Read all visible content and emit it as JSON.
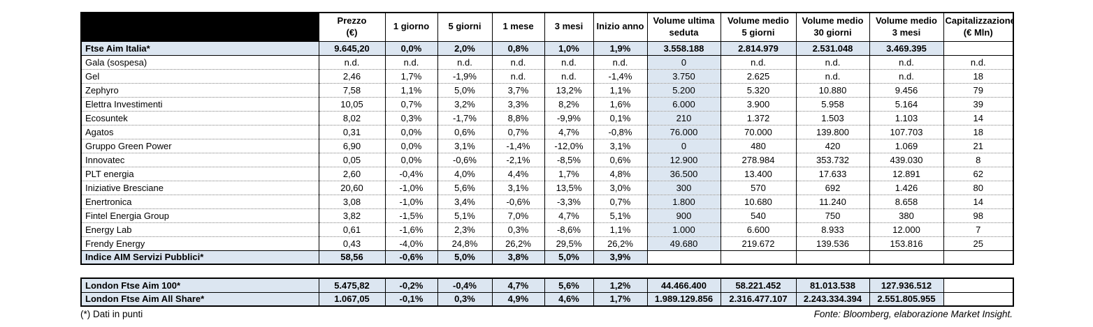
{
  "footnote": "(*) Dati in punti",
  "source": "Fonte: Bloomberg, elaborazione Market Insight.",
  "colors": {
    "row_highlight": "#DCE6F1",
    "volume_column_shade": "#DCE6F1",
    "header_corner": "#000000",
    "border": "#000000"
  },
  "chart_data": {
    "type": "table",
    "title": "",
    "grid": "on",
    "columns": [
      {
        "key": "name",
        "lines": [
          ""
        ]
      },
      {
        "key": "prezzo",
        "lines": [
          "Prezzo",
          "(€)"
        ]
      },
      {
        "key": "1-giorno",
        "lines": [
          "1 giorno"
        ]
      },
      {
        "key": "5-giorni",
        "lines": [
          "5 giorni"
        ]
      },
      {
        "key": "1-mese",
        "lines": [
          "1 mese"
        ]
      },
      {
        "key": "3-mesi",
        "lines": [
          "3 mesi"
        ]
      },
      {
        "key": "inizio-anno",
        "lines": [
          "Inizio anno"
        ]
      },
      {
        "key": "volume-ultima-seduta",
        "lines": [
          "Volume ultima",
          "seduta"
        ]
      },
      {
        "key": "volume-medio-5-giorni",
        "lines": [
          "Volume medio",
          "5 giorni"
        ]
      },
      {
        "key": "volume-medio-30-giorni",
        "lines": [
          "Volume medio",
          "30 giorni"
        ]
      },
      {
        "key": "volume-medio-3-mesi",
        "lines": [
          "Volume medio",
          "3 mesi"
        ]
      },
      {
        "key": "capitalizzazione",
        "lines": [
          "Capitalizzazione",
          "(€ Mln)"
        ]
      }
    ],
    "rows": [
      {
        "name": "Ftse Aim Italia*",
        "highlight": true,
        "hl_cells": 10,
        "cells": [
          "9.645,20",
          "0,0%",
          "2,0%",
          "0,8%",
          "1,0%",
          "1,9%",
          "3.558.188",
          "2.814.979",
          "2.531.048",
          "3.469.395",
          ""
        ]
      },
      {
        "name": "Gala (sospesa)",
        "highlight": false,
        "hl_cells": 0,
        "cells": [
          "n.d.",
          "n.d.",
          "n.d.",
          "n.d.",
          "n.d.",
          "n.d.",
          "0",
          "n.d.",
          "n.d.",
          "n.d.",
          "n.d."
        ]
      },
      {
        "name": "Gel",
        "highlight": false,
        "hl_cells": 0,
        "cells": [
          "2,46",
          "1,7%",
          "-1,9%",
          "n.d.",
          "n.d.",
          "-1,4%",
          "3.750",
          "2.625",
          "n.d.",
          "n.d.",
          "18"
        ]
      },
      {
        "name": "Zephyro",
        "highlight": false,
        "hl_cells": 0,
        "cells": [
          "7,58",
          "1,1%",
          "5,0%",
          "3,7%",
          "13,2%",
          "1,1%",
          "5.200",
          "5.320",
          "10.880",
          "9.456",
          "79"
        ]
      },
      {
        "name": "Elettra Investimenti",
        "highlight": false,
        "hl_cells": 0,
        "cells": [
          "10,05",
          "0,7%",
          "3,2%",
          "3,3%",
          "8,2%",
          "1,6%",
          "6.000",
          "3.900",
          "5.958",
          "5.164",
          "39"
        ]
      },
      {
        "name": "Ecosuntek",
        "highlight": false,
        "hl_cells": 0,
        "cells": [
          "8,02",
          "0,3%",
          "-1,7%",
          "8,8%",
          "-9,9%",
          "0,1%",
          "210",
          "1.372",
          "1.503",
          "1.103",
          "14"
        ]
      },
      {
        "name": "Agatos",
        "highlight": false,
        "hl_cells": 0,
        "cells": [
          "0,31",
          "0,0%",
          "0,6%",
          "0,7%",
          "4,7%",
          "-0,8%",
          "76.000",
          "70.000",
          "139.800",
          "107.703",
          "18"
        ]
      },
      {
        "name": "Gruppo Green Power",
        "highlight": false,
        "hl_cells": 0,
        "cells": [
          "6,90",
          "0,0%",
          "3,1%",
          "-1,4%",
          "-12,0%",
          "3,1%",
          "0",
          "480",
          "420",
          "1.069",
          "21"
        ]
      },
      {
        "name": "Innovatec",
        "highlight": false,
        "hl_cells": 0,
        "cells": [
          "0,05",
          "0,0%",
          "-0,6%",
          "-2,1%",
          "-8,5%",
          "0,6%",
          "12.900",
          "278.984",
          "353.732",
          "439.030",
          "8"
        ]
      },
      {
        "name": "PLT energia",
        "highlight": false,
        "hl_cells": 0,
        "cells": [
          "2,60",
          "-0,4%",
          "4,0%",
          "4,4%",
          "1,7%",
          "4,8%",
          "36.500",
          "13.400",
          "17.633",
          "12.891",
          "62"
        ]
      },
      {
        "name": "Iniziative Bresciane",
        "highlight": false,
        "hl_cells": 0,
        "cells": [
          "20,60",
          "-1,0%",
          "5,6%",
          "3,1%",
          "13,5%",
          "3,0%",
          "300",
          "570",
          "692",
          "1.426",
          "80"
        ]
      },
      {
        "name": "Enertronica",
        "highlight": false,
        "hl_cells": 0,
        "cells": [
          "3,08",
          "-1,0%",
          "3,4%",
          "-0,6%",
          "-3,3%",
          "0,7%",
          "1.800",
          "10.680",
          "11.240",
          "8.658",
          "14"
        ]
      },
      {
        "name": "Fintel Energia Group",
        "highlight": false,
        "hl_cells": 0,
        "cells": [
          "3,82",
          "-1,5%",
          "5,1%",
          "7,0%",
          "4,7%",
          "5,1%",
          "900",
          "540",
          "750",
          "380",
          "98"
        ]
      },
      {
        "name": "Energy Lab",
        "highlight": false,
        "hl_cells": 0,
        "cells": [
          "0,61",
          "-1,6%",
          "2,3%",
          "0,3%",
          "-8,6%",
          "1,1%",
          "1.000",
          "6.600",
          "8.933",
          "12.000",
          "7"
        ]
      },
      {
        "name": "Frendy Energy",
        "highlight": false,
        "hl_cells": 0,
        "cells": [
          "0,43",
          "-4,0%",
          "24,8%",
          "26,2%",
          "29,5%",
          "26,2%",
          "49.680",
          "219.672",
          "139.536",
          "153.816",
          "25"
        ]
      },
      {
        "name": "Indice AIM Servizi Pubblici*",
        "highlight": true,
        "hl_cells": 6,
        "cells": [
          "58,56",
          "-0,6%",
          "5,0%",
          "3,8%",
          "5,0%",
          "3,9%",
          "",
          "",
          "",
          "",
          ""
        ]
      }
    ],
    "london_rows": [
      {
        "name": "London Ftse Aim 100*",
        "highlight": true,
        "hl_cells": 10,
        "cells": [
          "5.475,82",
          "-0,2%",
          "-0,4%",
          "4,7%",
          "5,6%",
          "1,2%",
          "44.466.400",
          "58.221.452",
          "81.013.538",
          "127.936.512",
          ""
        ]
      },
      {
        "name": "London Ftse Aim All Share*",
        "highlight": true,
        "hl_cells": 10,
        "cells": [
          "1.067,05",
          "-0,1%",
          "0,3%",
          "4,9%",
          "4,6%",
          "1,7%",
          "1.989.129.856",
          "2.316.477.107",
          "2.243.334.394",
          "2.551.805.955",
          ""
        ]
      }
    ]
  }
}
